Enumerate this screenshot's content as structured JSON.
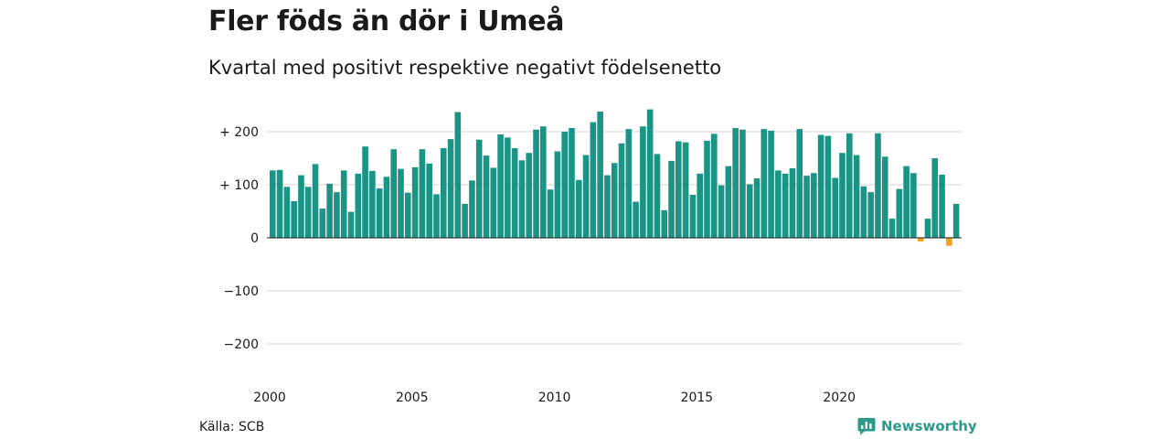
{
  "header": {
    "title": "Fler föds än dör i Umeå",
    "subtitle": "Kvartal med positivt respektive negativt födelsenetto"
  },
  "footer": {
    "source": "Källa: SCB",
    "brand": "Newsworthy",
    "brand_icon": "bar-chart-speech-bubble-icon"
  },
  "colors": {
    "positive": "#1a9484",
    "negative": "#f3a21c",
    "grid": "#dedede",
    "brand": "#2a9a8d"
  },
  "chart_data": {
    "type": "bar",
    "title": "Fler föds än dör i Umeå",
    "subtitle": "Kvartal med positivt respektive negativt födelsenetto",
    "xlabel": "",
    "ylabel": "",
    "ylim": [
      -240,
      240
    ],
    "y_ticks": [
      {
        "value": 200,
        "label": "+ 200"
      },
      {
        "value": 100,
        "label": "+ 100"
      },
      {
        "value": 0,
        "label": "0"
      },
      {
        "value": -100,
        "label": "−100"
      },
      {
        "value": -200,
        "label": "−200"
      }
    ],
    "x_start": 2000,
    "x_ticks": [
      {
        "value": 2000,
        "label": "2000"
      },
      {
        "value": 2005,
        "label": "2005"
      },
      {
        "value": 2010,
        "label": "2010"
      },
      {
        "value": 2015,
        "label": "2015"
      },
      {
        "value": 2020,
        "label": "2020"
      }
    ],
    "grid": true,
    "legend": "none",
    "values": [
      127,
      128,
      96,
      69,
      118,
      96,
      139,
      55,
      102,
      86,
      127,
      49,
      121,
      172,
      126,
      93,
      115,
      167,
      130,
      85,
      133,
      167,
      140,
      82,
      169,
      186,
      237,
      64,
      108,
      185,
      155,
      132,
      195,
      189,
      169,
      146,
      160,
      204,
      210,
      91,
      163,
      200,
      207,
      109,
      156,
      218,
      238,
      118,
      141,
      178,
      205,
      68,
      210,
      242,
      158,
      52,
      145,
      182,
      180,
      81,
      121,
      183,
      196,
      99,
      135,
      207,
      204,
      101,
      112,
      205,
      202,
      127,
      121,
      131,
      205,
      117,
      122,
      194,
      192,
      113,
      160,
      197,
      156,
      97,
      86,
      197,
      153,
      36,
      92,
      135,
      122,
      -7,
      36,
      150,
      119,
      -15,
      64
    ]
  }
}
